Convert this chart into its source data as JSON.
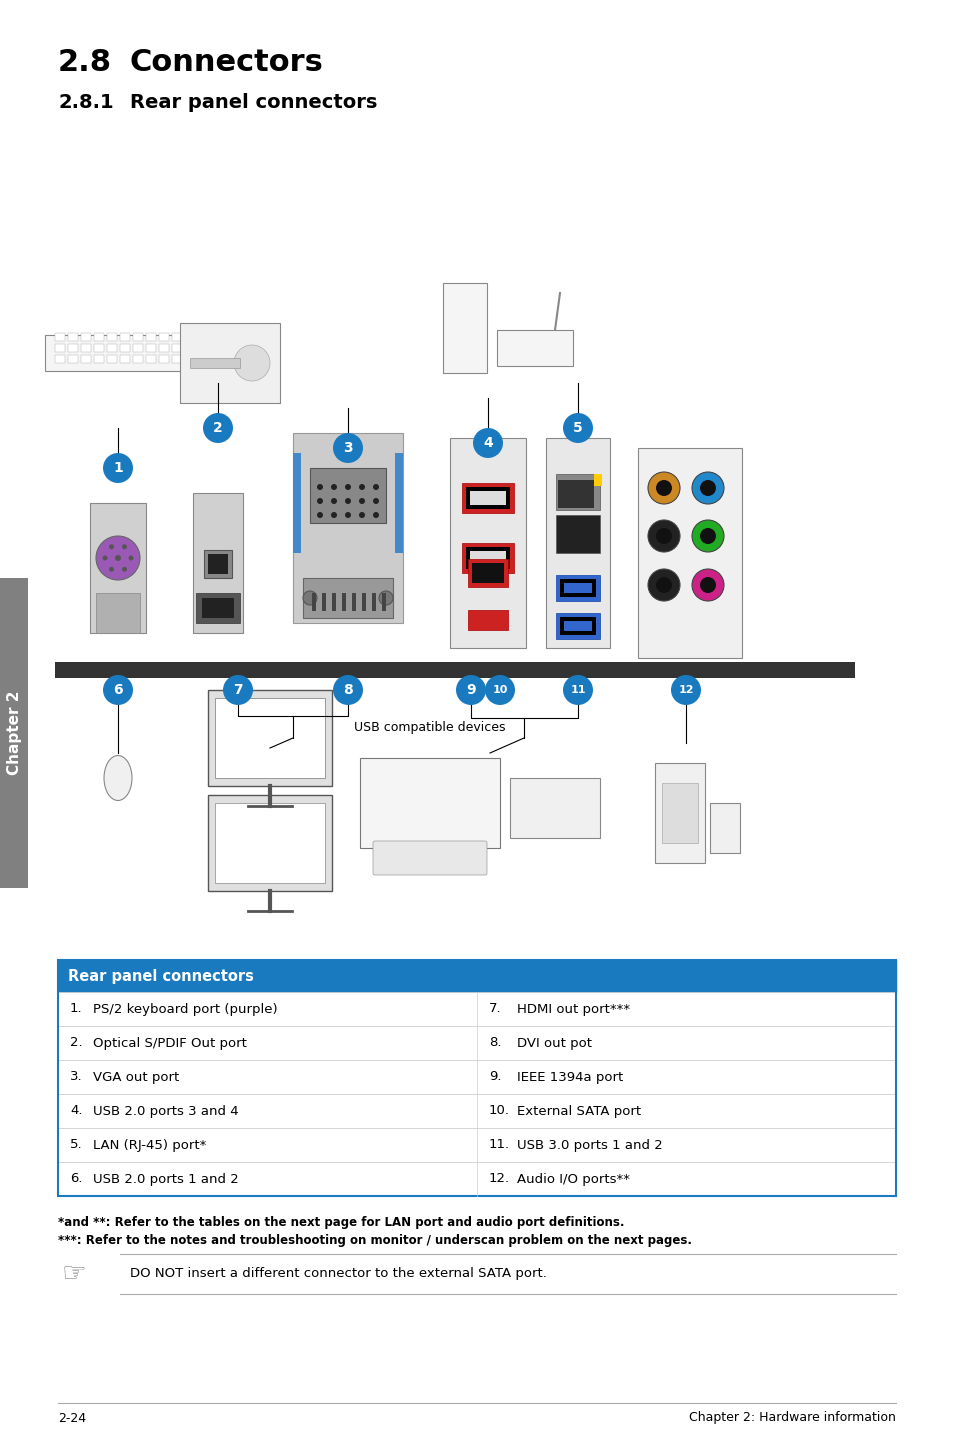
{
  "title_section": "2.8",
  "title_text": "Connectors",
  "subtitle_section": "2.8.1",
  "subtitle_text": "Rear panel connectors",
  "bg_color": "#ffffff",
  "page_number": "2-24",
  "footer_text": "Chapter 2: Hardware information",
  "chapter_label": "Chapter 2",
  "chapter_bg": "#808080",
  "table_header_bg": "#1a7abf",
  "table_header_text": "Rear panel connectors",
  "table_header_fg": "#ffffff",
  "table_border": "#1a7abf",
  "table_row_border": "#cccccc",
  "table_left": [
    [
      "1.",
      "PS/2 keyboard port (purple)"
    ],
    [
      "2.",
      "Optical S/PDIF Out port"
    ],
    [
      "3.",
      "VGA out port"
    ],
    [
      "4.",
      "USB 2.0 ports 3 and 4"
    ],
    [
      "5.",
      "LAN (RJ-45) port*"
    ],
    [
      "6.",
      "USB 2.0 ports 1 and 2"
    ]
  ],
  "table_right": [
    [
      "7.",
      "HDMI out port***"
    ],
    [
      "8.",
      "DVI out pot"
    ],
    [
      "9.",
      "IEEE 1394a port"
    ],
    [
      "10.",
      "External SATA port"
    ],
    [
      "11.",
      "USB 3.0 ports 1 and 2"
    ],
    [
      "12.",
      "Audio I/O ports**"
    ]
  ],
  "note1": "*and **: Refer to the tables on the next page for LAN port and audio port definitions.",
  "note2": "***: Refer to the notes and troubleshooting on monitor / underscan problem on the next pages.",
  "caution_text": "DO NOT insert a different connector to the external SATA port.",
  "connector_circle_color": "#1a7abf",
  "connector_circle_text_color": "#ffffff",
  "usb_label": "USB compatible devices"
}
